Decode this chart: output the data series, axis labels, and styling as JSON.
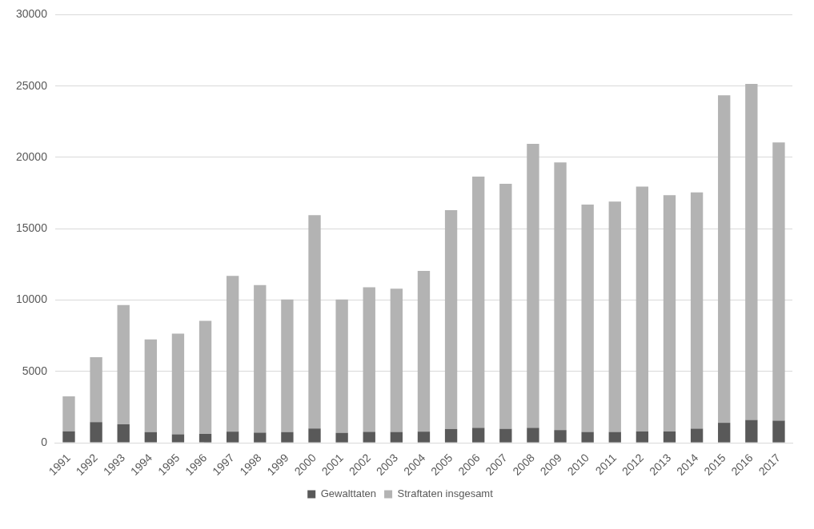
{
  "chart_data": {
    "type": "bar",
    "stacked": true,
    "categories": [
      "1991",
      "1992",
      "1993",
      "1994",
      "1995",
      "1996",
      "1997",
      "1998",
      "1999",
      "2000",
      "2001",
      "2002",
      "2003",
      "2004",
      "2005",
      "2006",
      "2007",
      "2008",
      "2009",
      "2010",
      "2011",
      "2012",
      "2013",
      "2014",
      "2015",
      "2016",
      "2017"
    ],
    "series": [
      {
        "name": "Gewalttaten",
        "color": "#595959",
        "values": [
          800,
          1450,
          1300,
          750,
          600,
          620,
          780,
          710,
          750,
          1000,
          700,
          770,
          760,
          780,
          960,
          1050,
          980,
          1050,
          890,
          760,
          760,
          800,
          800,
          990,
          1400,
          1600,
          1550
        ]
      },
      {
        "name": "Straftaten insgesamt",
        "color": "#b3b3b3",
        "values": [
          2450,
          4550,
          8350,
          6500,
          7050,
          7930,
          10920,
          10340,
          9300,
          14950,
          9350,
          10130,
          10040,
          11270,
          15340,
          17600,
          17170,
          19900,
          18760,
          15940,
          16140,
          17150,
          16550,
          16560,
          22950,
          23550,
          19500
        ]
      }
    ],
    "ylim": [
      0,
      30000
    ],
    "yticks": [
      0,
      5000,
      10000,
      15000,
      20000,
      25000,
      30000
    ],
    "grid": "y",
    "legend": "bottom"
  }
}
